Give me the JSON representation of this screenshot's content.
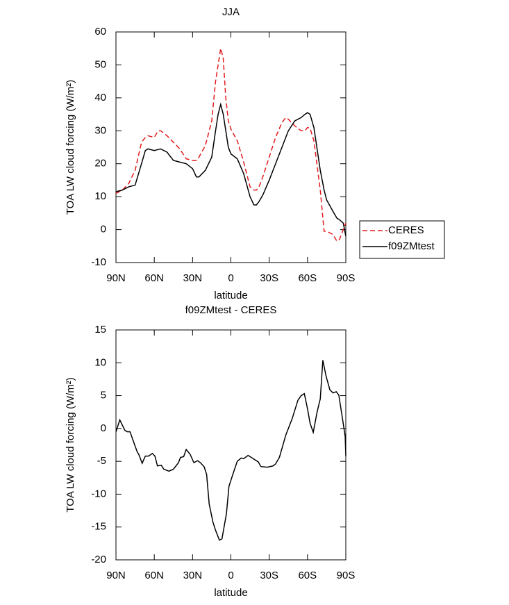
{
  "chart_data": [
    {
      "type": "line",
      "title": "JJA",
      "xlabel": "latitude",
      "ylabel": "TOA LW cloud forcing (W/m²)",
      "x": [
        90,
        85,
        80,
        75,
        70,
        67,
        65,
        60,
        57,
        55,
        50,
        45,
        40,
        35,
        30,
        27,
        25,
        20,
        15,
        12,
        10,
        8,
        6,
        4,
        2,
        0,
        -5,
        -10,
        -15,
        -18,
        -20,
        -22,
        -25,
        -30,
        -35,
        -40,
        -43,
        -45,
        -50,
        -55,
        -58,
        -60,
        -62,
        -65,
        -70,
        -73,
        -75,
        -80,
        -83,
        -85,
        -88,
        -90
      ],
      "series": [
        {
          "name": "CERES",
          "color": "#e31a1c",
          "dash": true,
          "values": [
            11,
            12,
            14,
            18,
            26.5,
            28,
            28.5,
            28,
            30,
            30,
            28.5,
            26.5,
            24.5,
            21.5,
            21,
            21,
            22,
            25.5,
            33,
            45,
            50,
            55,
            52,
            40,
            33,
            30.5,
            27,
            20.5,
            13,
            12,
            12,
            13,
            16,
            22,
            28,
            32.5,
            34,
            33.5,
            31.5,
            30,
            30,
            31,
            30.8,
            27,
            12,
            -0.5,
            -0.5,
            -1.5,
            -3.5,
            -3,
            0,
            2
          ]
        },
        {
          "name": "f09ZMtest",
          "color": "#000000",
          "dash": false,
          "values": [
            11.5,
            12,
            13,
            13.5,
            20,
            24,
            24.5,
            24,
            24.3,
            24.5,
            23.5,
            21,
            20.5,
            20,
            18.5,
            16,
            16,
            18,
            22,
            30,
            35,
            38,
            35,
            30,
            25,
            23,
            21.5,
            17,
            10,
            7.5,
            7.5,
            8.5,
            10.5,
            15,
            20,
            25,
            28,
            30,
            33,
            34,
            35,
            35.5,
            35,
            31,
            18,
            12,
            9,
            5.5,
            3.5,
            3,
            2,
            -2
          ]
        }
      ],
      "xlim": [
        90,
        -90
      ],
      "xticks": [
        {
          "value": 90,
          "label": "90N"
        },
        {
          "value": 60,
          "label": "60N"
        },
        {
          "value": 30,
          "label": "30N"
        },
        0,
        {
          "value": -30,
          "label": "30S"
        },
        {
          "value": -60,
          "label": "60S"
        },
        {
          "value": -90,
          "label": "90S"
        }
      ],
      "ylim": [
        -10,
        60
      ],
      "yticks": [
        -10,
        0,
        10,
        20,
        30,
        40,
        50,
        60
      ],
      "legend": "right"
    },
    {
      "type": "line",
      "title": "f09ZMtest - CERES",
      "xlabel": "latitude",
      "ylabel": "TOA LW cloud forcing (W/m²)",
      "x": [
        90,
        87,
        83,
        81,
        79,
        73.5,
        72,
        69.5,
        67,
        64.5,
        61.5,
        59.5,
        57.5,
        54.5,
        52.5,
        48.5,
        45,
        43,
        41,
        39.5,
        37,
        35,
        32,
        29,
        26,
        24,
        21,
        19,
        17,
        14,
        12,
        9,
        7,
        3.5,
        1.5,
        -2,
        -5,
        -8,
        -10,
        -13.5,
        -17.5,
        -21.5,
        -23.5,
        -28.5,
        -33,
        -35,
        -38,
        -43,
        -48,
        -52.5,
        -55,
        -57.5,
        -60,
        -62,
        -64.5,
        -67.5,
        -70,
        -72,
        -74.5,
        -77.5,
        -80,
        -82.5,
        -84.5,
        -87,
        -89.5,
        -90
      ],
      "series": [
        {
          "color": "#000000",
          "dash": false,
          "values": [
            -0.5,
            1.3,
            -0.3,
            -0.5,
            -0.5,
            -3.5,
            -4,
            -5.3,
            -4.2,
            -4.2,
            -3.8,
            -4.2,
            -5.7,
            -5.6,
            -6.2,
            -6.5,
            -6.2,
            -5.7,
            -5.2,
            -4.4,
            -4.3,
            -3.2,
            -3.9,
            -5.2,
            -4.9,
            -5.2,
            -5.8,
            -7,
            -11.5,
            -14.3,
            -15.5,
            -17,
            -16.8,
            -13,
            -8.8,
            -6.7,
            -5,
            -4.5,
            -4.6,
            -4.1,
            -4.6,
            -5.1,
            -5.8,
            -5.9,
            -5.7,
            -5.4,
            -4.4,
            -1,
            1.5,
            4.3,
            5,
            5.3,
            3,
            0.8,
            -0.6,
            2.5,
            4.5,
            10.4,
            8,
            5.9,
            5.4,
            5.6,
            5.1,
            2,
            -1.2,
            -4.2
          ]
        }
      ],
      "xlim": [
        90,
        -90
      ],
      "xticks": [
        {
          "value": 90,
          "label": "90N"
        },
        {
          "value": 60,
          "label": "60N"
        },
        {
          "value": 30,
          "label": "30N"
        },
        0,
        {
          "value": -30,
          "label": "30S"
        },
        {
          "value": -60,
          "label": "60S"
        },
        {
          "value": -90,
          "label": "90S"
        }
      ],
      "ylim": [
        -20,
        15
      ],
      "yticks": [
        -20,
        -15,
        -10,
        -5,
        0,
        5,
        10,
        15
      ]
    }
  ]
}
